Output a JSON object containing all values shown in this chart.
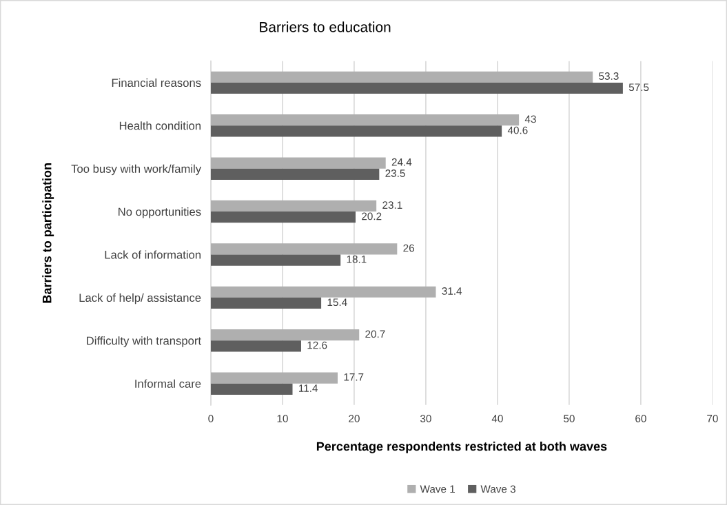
{
  "chart_data": {
    "type": "bar",
    "orientation": "horizontal",
    "title": "Barriers to education",
    "xlabel": "Percentage respondents restricted at both waves",
    "ylabel": "Barriers to participation",
    "categories": [
      "Financial reasons",
      "Health condition",
      "Too busy with work/family",
      "No opportunities",
      "Lack of information",
      "Lack of help/ assistance",
      "Difficulty with transport",
      "Informal care"
    ],
    "series": [
      {
        "name": "Wave 1",
        "color": "#afafaf",
        "values": [
          53.3,
          43,
          24.4,
          23.1,
          26,
          31.4,
          20.7,
          17.7
        ]
      },
      {
        "name": "Wave 3",
        "color": "#5f5f5f",
        "values": [
          57.5,
          40.6,
          23.5,
          20.2,
          18.1,
          15.4,
          12.6,
          11.4
        ]
      }
    ],
    "xlim": [
      0,
      70
    ],
    "xticks": [
      0,
      10,
      20,
      30,
      40,
      50,
      60,
      70
    ],
    "grid": "x",
    "legend": "bottom",
    "data_labels": true
  }
}
